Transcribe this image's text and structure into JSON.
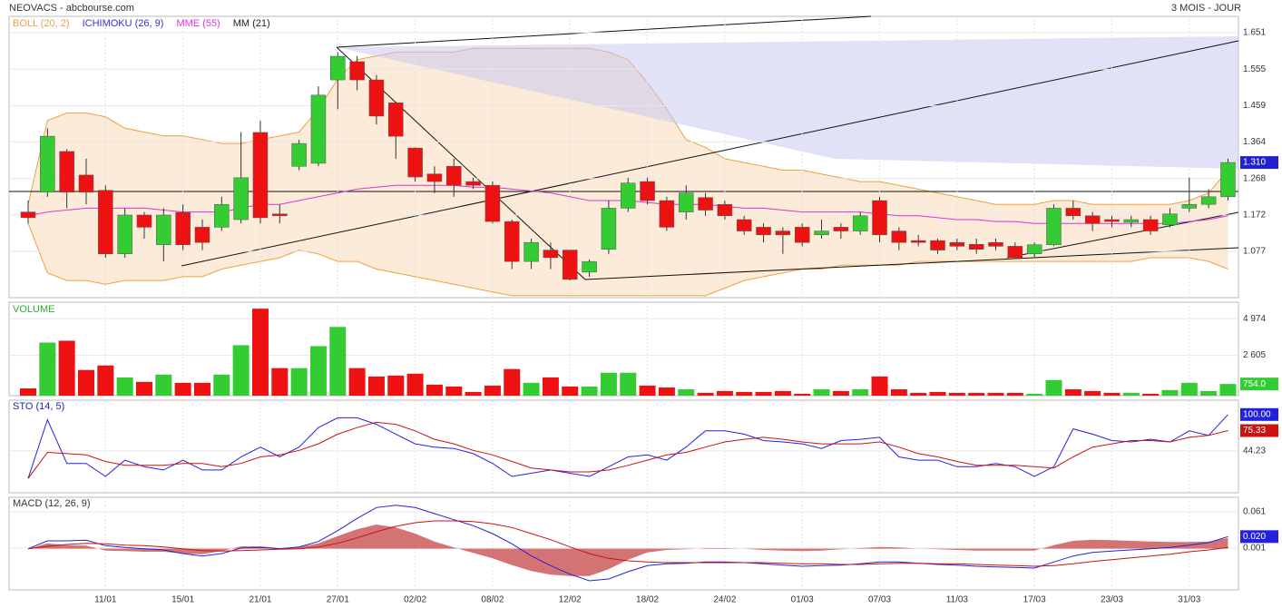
{
  "chart_data": [
    {
      "type": "candlestick",
      "title": "NEOVACS - abcbourse.com",
      "subtitle": "3 MOIS - JOUR",
      "legend": [
        {
          "name": "BOLL (20, 2)",
          "color": "#f0a040"
        },
        {
          "name": "ICHIMOKU (26, 9)",
          "color": "#3333cc"
        },
        {
          "name": "MME (55)",
          "color": "#dd33dd"
        },
        {
          "name": "MM (21)",
          "color": "#222222"
        }
      ],
      "categories": [
        null,
        null,
        null,
        null,
        "11/01",
        null,
        null,
        null,
        "15/01",
        null,
        null,
        null,
        "21/01",
        null,
        null,
        null,
        "27/01",
        null,
        null,
        null,
        "02/02",
        null,
        null,
        null,
        "08/02",
        null,
        null,
        null,
        "12/02",
        null,
        null,
        null,
        "18/02",
        null,
        null,
        null,
        "24/02",
        null,
        null,
        null,
        "01/03",
        null,
        null,
        null,
        "07/03",
        null,
        null,
        null,
        "11/03",
        null,
        null,
        null,
        "17/03",
        null,
        null,
        null,
        "23/03",
        null,
        null,
        null,
        "31/03",
        null,
        null
      ],
      "open": [
        1.18,
        1.232,
        1.339,
        1.277,
        1.237,
        1.07,
        1.172,
        1.094,
        1.179,
        1.14,
        1.14,
        1.16,
        1.389,
        1.175,
        1.3,
        1.308,
        1.527,
        1.575,
        1.527,
        1.467,
        1.348,
        1.28,
        1.3,
        1.26,
        1.25,
        1.155,
        1.05,
        1.08,
        1.08,
        1.022,
        1.082,
        1.19,
        1.26,
        1.21,
        1.18,
        1.218,
        1.2,
        1.16,
        1.14,
        1.13,
        1.14,
        1.12,
        1.14,
        1.13,
        1.21,
        1.13,
        1.105,
        1.105,
        1.1,
        1.095,
        1.1,
        1.09,
        1.07,
        1.094,
        1.19,
        1.17,
        1.16,
        1.153,
        1.16,
        1.146,
        1.19,
        1.2,
        1.22
      ],
      "high": [
        1.21,
        1.4,
        1.345,
        1.32,
        1.25,
        1.19,
        1.18,
        1.19,
        1.2,
        1.16,
        1.22,
        1.39,
        1.42,
        1.2,
        1.37,
        1.51,
        1.6,
        1.59,
        1.54,
        1.47,
        1.35,
        1.3,
        1.32,
        1.27,
        1.26,
        1.16,
        1.11,
        1.1,
        1.08,
        1.055,
        1.21,
        1.27,
        1.27,
        1.22,
        1.25,
        1.23,
        1.21,
        1.17,
        1.15,
        1.14,
        1.15,
        1.16,
        1.15,
        1.18,
        1.22,
        1.14,
        1.12,
        1.11,
        1.11,
        1.11,
        1.11,
        1.1,
        1.1,
        1.2,
        1.21,
        1.18,
        1.17,
        1.17,
        1.17,
        1.19,
        1.27,
        1.24,
        1.32
      ],
      "low": [
        1.15,
        1.22,
        1.19,
        1.2,
        1.06,
        1.06,
        1.11,
        1.05,
        1.08,
        1.08,
        1.13,
        1.15,
        1.15,
        1.15,
        1.29,
        1.3,
        1.45,
        1.5,
        1.41,
        1.32,
        1.26,
        1.23,
        1.22,
        1.24,
        1.15,
        1.03,
        1.03,
        1.03,
        1.0,
        1.01,
        1.07,
        1.18,
        1.2,
        1.13,
        1.16,
        1.17,
        1.16,
        1.12,
        1.1,
        1.07,
        1.09,
        1.11,
        1.11,
        1.12,
        1.1,
        1.08,
        1.09,
        1.07,
        1.08,
        1.07,
        1.08,
        1.06,
        1.06,
        1.09,
        1.16,
        1.13,
        1.14,
        1.14,
        1.12,
        1.14,
        1.18,
        1.19,
        1.21
      ],
      "close": [
        1.165,
        1.379,
        1.232,
        1.232,
        1.07,
        1.172,
        1.14,
        1.172,
        1.094,
        1.1,
        1.2,
        1.27,
        1.165,
        1.17,
        1.36,
        1.487,
        1.589,
        1.527,
        1.432,
        1.379,
        1.272,
        1.26,
        1.25,
        1.25,
        1.155,
        1.05,
        1.1,
        1.06,
        1.003,
        1.05,
        1.19,
        1.256,
        1.21,
        1.14,
        1.23,
        1.185,
        1.17,
        1.13,
        1.12,
        1.12,
        1.1,
        1.13,
        1.13,
        1.17,
        1.12,
        1.1,
        1.1,
        1.08,
        1.09,
        1.082,
        1.09,
        1.06,
        1.094,
        1.19,
        1.17,
        1.15,
        1.155,
        1.16,
        1.13,
        1.175,
        1.2,
        1.22,
        1.31
      ],
      "last_value_label": "1.310",
      "boll_upper": [
        1.2,
        1.42,
        1.44,
        1.44,
        1.43,
        1.4,
        1.39,
        1.38,
        1.38,
        1.37,
        1.36,
        1.36,
        1.37,
        1.38,
        1.39,
        1.45,
        1.53,
        1.58,
        1.59,
        1.6,
        1.6,
        1.6,
        1.6,
        1.61,
        1.61,
        1.61,
        1.61,
        1.61,
        1.61,
        1.61,
        1.6,
        1.58,
        1.52,
        1.45,
        1.37,
        1.35,
        1.32,
        1.31,
        1.3,
        1.29,
        1.29,
        1.28,
        1.27,
        1.26,
        1.26,
        1.25,
        1.24,
        1.23,
        1.22,
        1.21,
        1.2,
        1.2,
        1.2,
        1.21,
        1.21,
        1.2,
        1.2,
        1.2,
        1.2,
        1.2,
        1.21,
        1.23,
        1.29
      ],
      "boll_lower": [
        1.15,
        1.02,
        1.0,
        1.0,
        0.99,
        1.0,
        1.0,
        1.0,
        1.01,
        1.01,
        1.03,
        1.04,
        1.05,
        1.06,
        1.08,
        1.07,
        1.05,
        1.05,
        1.03,
        1.02,
        1.01,
        1.0,
        0.99,
        0.98,
        0.97,
        0.96,
        0.96,
        0.96,
        0.96,
        0.96,
        0.96,
        0.96,
        0.96,
        0.96,
        0.96,
        0.96,
        0.98,
        1.0,
        1.01,
        1.02,
        1.03,
        1.03,
        1.04,
        1.04,
        1.04,
        1.04,
        1.05,
        1.05,
        1.05,
        1.05,
        1.05,
        1.05,
        1.05,
        1.05,
        1.05,
        1.05,
        1.05,
        1.05,
        1.06,
        1.06,
        1.06,
        1.05,
        1.03
      ],
      "mme": [
        1.17,
        1.18,
        1.185,
        1.19,
        1.19,
        1.19,
        1.19,
        1.185,
        1.18,
        1.18,
        1.18,
        1.19,
        1.2,
        1.2,
        1.21,
        1.22,
        1.23,
        1.24,
        1.245,
        1.25,
        1.25,
        1.25,
        1.25,
        1.245,
        1.245,
        1.24,
        1.235,
        1.23,
        1.22,
        1.21,
        1.21,
        1.21,
        1.205,
        1.2,
        1.2,
        1.2,
        1.195,
        1.19,
        1.19,
        1.185,
        1.18,
        1.18,
        1.18,
        1.18,
        1.175,
        1.17,
        1.17,
        1.165,
        1.16,
        1.16,
        1.155,
        1.155,
        1.15,
        1.15,
        1.15,
        1.15,
        1.15,
        1.15,
        1.15,
        1.15,
        1.155,
        1.16,
        1.17
      ],
      "up_color": "#33cc33",
      "down_color": "#ee1111",
      "ylim": [
        0.955,
        1.694
      ],
      "yticks": [
        1.651,
        1.555,
        1.459,
        1.364,
        1.268,
        1.172,
        1.077
      ],
      "grid": true
    },
    {
      "type": "bar",
      "title": "VOLUME",
      "values": [
        470,
        3430,
        3550,
        1660,
        1950,
        1180,
        890,
        1360,
        830,
        830,
        1360,
        3260,
        5620,
        1780,
        1780,
        3200,
        4440,
        1780,
        1240,
        1300,
        1420,
        710,
        590,
        240,
        650,
        1720,
        830,
        1180,
        590,
        590,
        1480,
        1480,
        650,
        530,
        410,
        180,
        300,
        240,
        240,
        300,
        120,
        410,
        300,
        410,
        1240,
        410,
        180,
        240,
        180,
        180,
        180,
        180,
        120,
        1010,
        410,
        300,
        180,
        180,
        120,
        360,
        830,
        300,
        754
      ],
      "last_value_label": "754.0",
      "ylim": [
        0,
        6040
      ],
      "yticks": [
        {
          "value": 2605,
          "label": "2 605"
        },
        {
          "value": 4974,
          "label": "4 974"
        }
      ]
    },
    {
      "type": "line",
      "title": "STO (14, 5)",
      "series": [
        {
          "color": "#2222dd",
          "values": [
            2,
            92,
            25,
            25,
            5,
            30,
            20,
            15,
            30,
            15,
            15,
            35,
            50,
            35,
            50,
            80,
            95,
            95,
            85,
            70,
            55,
            50,
            48,
            40,
            25,
            5,
            10,
            15,
            10,
            5,
            20,
            35,
            38,
            30,
            50,
            75,
            75,
            70,
            60,
            58,
            55,
            48,
            60,
            62,
            65,
            35,
            30,
            30,
            20,
            20,
            25,
            20,
            5,
            20,
            78,
            70,
            60,
            58,
            62,
            58,
            75,
            68,
            100
          ],
          "last_value_label": "100.00"
        },
        {
          "color": "#cc1111",
          "values": [
            2,
            42,
            40,
            38,
            28,
            22,
            22,
            22,
            25,
            25,
            20,
            25,
            35,
            38,
            45,
            55,
            70,
            80,
            88,
            85,
            75,
            62,
            55,
            45,
            38,
            28,
            18,
            15,
            12,
            12,
            15,
            22,
            30,
            38,
            42,
            50,
            58,
            62,
            65,
            62,
            58,
            55,
            55,
            55,
            58,
            50,
            40,
            35,
            28,
            22,
            22,
            22,
            20,
            18,
            35,
            50,
            55,
            60,
            60,
            58,
            65,
            68,
            75.33
          ],
          "last_value_label": "75.33"
        }
      ],
      "ylim": [
        -20,
        122
      ],
      "yticks": [
        44.23
      ]
    },
    {
      "type": "macd",
      "title": "MACD (12, 26, 9)",
      "series": [
        {
          "color": "#2222dd",
          "values": [
            0,
            0.013,
            0.013,
            0.014,
            0.005,
            0.002,
            0.0,
            -0.002,
            -0.008,
            -0.012,
            -0.008,
            0.001,
            0.002,
            0.0,
            0.003,
            0.012,
            0.03,
            0.05,
            0.068,
            0.072,
            0.068,
            0.058,
            0.048,
            0.038,
            0.025,
            0.008,
            -0.012,
            -0.028,
            -0.042,
            -0.053,
            -0.05,
            -0.038,
            -0.028,
            -0.025,
            -0.024,
            -0.022,
            -0.022,
            -0.023,
            -0.025,
            -0.027,
            -0.029,
            -0.028,
            -0.027,
            -0.025,
            -0.022,
            -0.022,
            -0.024,
            -0.026,
            -0.027,
            -0.029,
            -0.03,
            -0.031,
            -0.032,
            -0.022,
            -0.012,
            -0.006,
            -0.004,
            -0.002,
            0.0,
            0.002,
            0.006,
            0.01,
            0.02
          ],
          "last_value_label": "0.020"
        },
        {
          "color": "#cc1111",
          "values": [
            0,
            0.004,
            0.007,
            0.009,
            0.008,
            0.006,
            0.005,
            0.003,
            0.0,
            -0.003,
            -0.004,
            -0.003,
            -0.002,
            -0.001,
            0.0,
            0.003,
            0.009,
            0.018,
            0.028,
            0.037,
            0.043,
            0.046,
            0.046,
            0.045,
            0.041,
            0.035,
            0.025,
            0.015,
            0.003,
            -0.008,
            -0.016,
            -0.02,
            -0.022,
            -0.023,
            -0.023,
            -0.023,
            -0.023,
            -0.023,
            -0.023,
            -0.024,
            -0.025,
            -0.025,
            -0.026,
            -0.026,
            -0.025,
            -0.024,
            -0.024,
            -0.025,
            -0.025,
            -0.026,
            -0.027,
            -0.028,
            -0.029,
            -0.028,
            -0.025,
            -0.021,
            -0.018,
            -0.015,
            -0.012,
            -0.009,
            -0.005,
            -0.002,
            0.002
          ]
        }
      ],
      "histogram": {
        "color": "#c85050",
        "values": [
          0,
          0.009,
          0.006,
          0.005,
          -0.003,
          -0.004,
          -0.005,
          -0.005,
          -0.008,
          -0.009,
          -0.004,
          0.004,
          0.004,
          0.001,
          0.003,
          0.009,
          0.021,
          0.032,
          0.04,
          0.035,
          0.025,
          0.012,
          0.002,
          -0.007,
          -0.016,
          -0.027,
          -0.037,
          -0.043,
          -0.045,
          -0.045,
          -0.034,
          -0.018,
          -0.006,
          -0.002,
          -0.001,
          0.001,
          0.001,
          0,
          -0.002,
          -0.003,
          -0.004,
          -0.003,
          -0.001,
          0.001,
          0.003,
          0.002,
          0,
          -0.001,
          -0.002,
          -0.003,
          -0.003,
          -0.003,
          -0.003,
          0.006,
          0.013,
          0.015,
          0.014,
          0.013,
          0.012,
          0.011,
          0.011,
          0.012,
          0.018
        ]
      },
      "ylim": [
        -0.068,
        0.085
      ],
      "yticks": [
        0.001,
        0.061
      ]
    }
  ]
}
